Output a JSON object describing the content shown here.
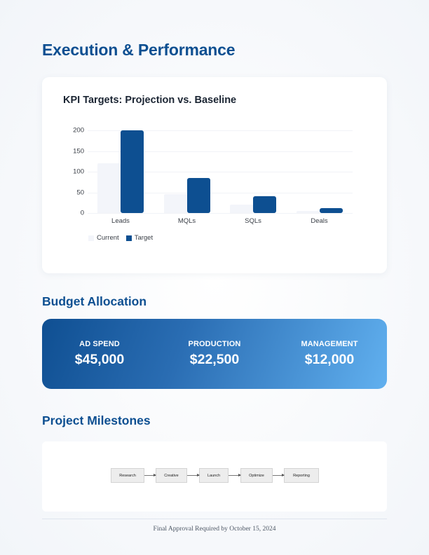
{
  "page": {
    "title": "Execution & Performance"
  },
  "chart_data": {
    "type": "bar",
    "title": "KPI Targets: Projection vs. Baseline",
    "categories": [
      "Leads",
      "MQLs",
      "SQLs",
      "Deals"
    ],
    "series": [
      {
        "name": "Current",
        "color": "#f3f5fa",
        "values": [
          120,
          45,
          20,
          5
        ]
      },
      {
        "name": "Target",
        "color": "#0d4f91",
        "values": [
          200,
          85,
          40,
          12
        ]
      }
    ],
    "xlabel": "",
    "ylabel": "",
    "ylim": [
      0,
      200
    ],
    "yticks": [
      0,
      50,
      100,
      150,
      200
    ],
    "grid": true,
    "legend_position": "bottom-left"
  },
  "budget": {
    "title": "Budget Allocation",
    "items": [
      {
        "label": "AD SPEND",
        "value": "$45,000"
      },
      {
        "label": "PRODUCTION",
        "value": "$22,500"
      },
      {
        "label": "MANAGEMENT",
        "value": "$12,000"
      }
    ]
  },
  "milestones": {
    "title": "Project Milestones",
    "steps": [
      "Research",
      "Creative",
      "Launch",
      "Optimize",
      "Reporting"
    ]
  },
  "footer": {
    "text": "Final Approval Required by October 15, 2024"
  }
}
